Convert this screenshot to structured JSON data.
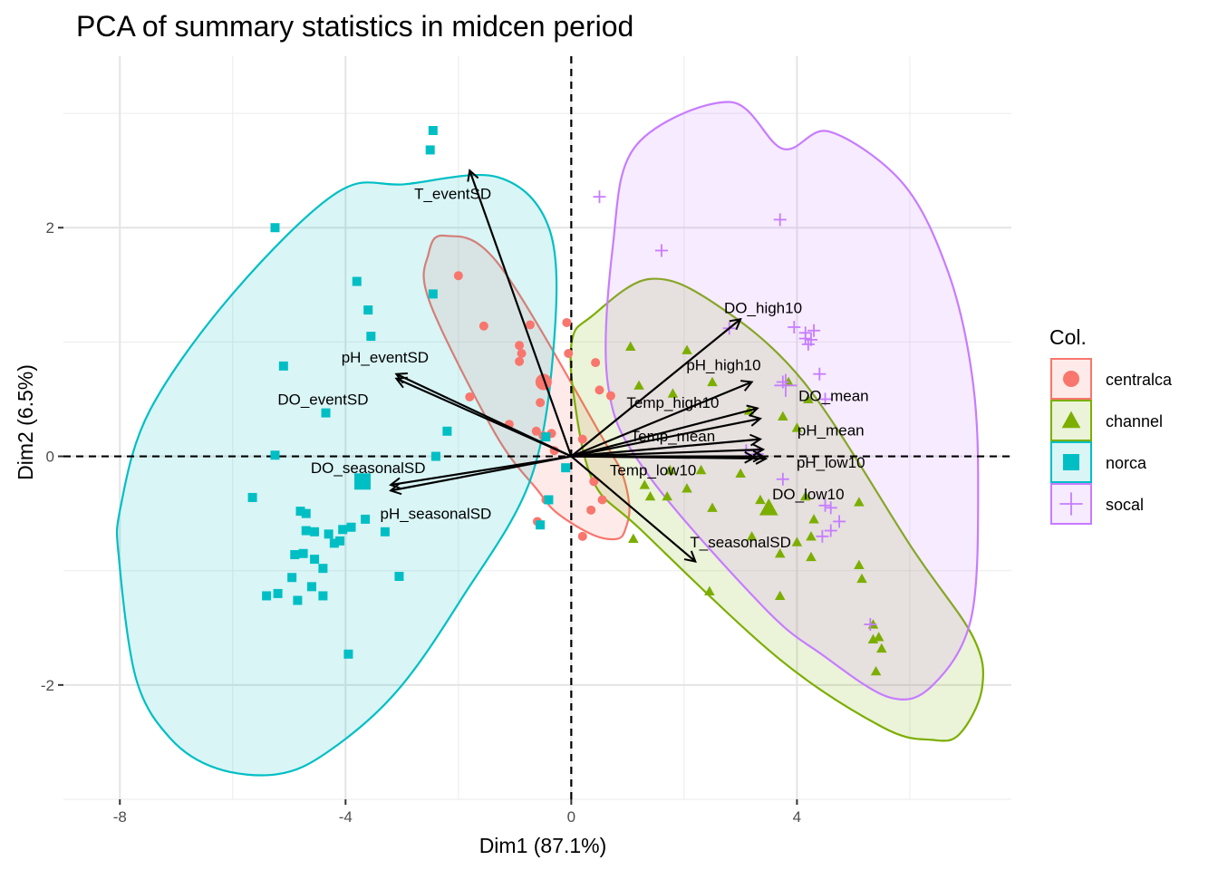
{
  "chart_data": {
    "type": "scatter",
    "title": "PCA of summary statistics in midcen period",
    "xlabel": "Dim1 (87.1%)",
    "ylabel": "Dim2 (6.5%)",
    "xlim": [
      -9.0,
      7.8
    ],
    "ylim": [
      -3.0,
      3.5
    ],
    "x_ticks": [
      -8,
      -4,
      0,
      4
    ],
    "x_tick_labels": [
      "-8",
      "-4",
      "0",
      "4"
    ],
    "y_ticks": [
      -2,
      0,
      2
    ],
    "y_tick_labels": [
      "-2",
      "0",
      "2"
    ],
    "grid": true,
    "legend_title": "Col.",
    "legend_position": "right",
    "groups": [
      {
        "name": "centralca",
        "color": "#F8766D",
        "shape": "circle",
        "ellipse": [
          [
            -2.53,
            1.77
          ],
          [
            -2.24,
            1.93
          ],
          [
            -1.27,
            1.67
          ],
          [
            0.66,
            0.07
          ],
          [
            0.91,
            -0.16
          ],
          [
            1.03,
            -0.44
          ],
          [
            0.97,
            -0.62
          ],
          [
            0.83,
            -0.72
          ],
          [
            0.4,
            -0.69
          ],
          [
            -0.24,
            -0.5
          ],
          [
            -0.59,
            -0.3
          ],
          [
            -1.35,
            0.2
          ],
          [
            -2.51,
            1.35
          ]
        ],
        "centroid": [
          -0.49,
          0.65
        ],
        "points": [
          [
            -2.0,
            1.58
          ],
          [
            -1.55,
            1.14
          ],
          [
            -1.8,
            0.52
          ],
          [
            -0.92,
            0.97
          ],
          [
            -0.88,
            0.9
          ],
          [
            -0.92,
            0.83
          ],
          [
            -0.73,
            1.15
          ],
          [
            -0.55,
            0.47
          ],
          [
            -0.35,
            0.2
          ],
          [
            -1.1,
            0.28
          ],
          [
            -0.62,
            0.22
          ],
          [
            -0.5,
            0.18
          ],
          [
            -0.3,
            0.05
          ],
          [
            -0.08,
            1.17
          ],
          [
            -0.05,
            0.9
          ],
          [
            0.43,
            0.82
          ],
          [
            0.5,
            0.58
          ],
          [
            0.7,
            0.53
          ],
          [
            0.2,
            0.15
          ],
          [
            0.4,
            -0.22
          ],
          [
            0.55,
            -0.38
          ],
          [
            0.35,
            -0.47
          ],
          [
            -0.45,
            -0.38
          ],
          [
            0.2,
            -0.7
          ],
          [
            -0.6,
            -0.57
          ]
        ]
      },
      {
        "name": "channel",
        "color": "#7CAE00",
        "shape": "triangle",
        "ellipse": [
          [
            0.35,
            1.22
          ],
          [
            1.37,
            1.55
          ],
          [
            2.5,
            1.35
          ],
          [
            4.12,
            0.65
          ],
          [
            6.05,
            -0.81
          ],
          [
            7.12,
            -1.58
          ],
          [
            7.28,
            -2.03
          ],
          [
            6.88,
            -2.43
          ],
          [
            6.39,
            -2.48
          ],
          [
            5.52,
            -2.37
          ],
          [
            3.68,
            -1.77
          ],
          [
            1.25,
            -0.65
          ],
          [
            0.39,
            -0.22
          ],
          [
            0.04,
            0.55
          ],
          [
            0.02,
            1.03
          ]
        ],
        "centroid": [
          3.5,
          -0.45
        ],
        "points": [
          [
            1.05,
            0.96
          ],
          [
            1.2,
            0.62
          ],
          [
            1.8,
            0.55
          ],
          [
            2.05,
            0.93
          ],
          [
            2.5,
            0.65
          ],
          [
            3.15,
            0.4
          ],
          [
            3.85,
            0.65
          ],
          [
            4.2,
            0.5
          ],
          [
            3.75,
            0.35
          ],
          [
            4.0,
            0.25
          ],
          [
            1.3,
            -0.25
          ],
          [
            1.75,
            -0.12
          ],
          [
            2.05,
            -0.28
          ],
          [
            2.3,
            -0.12
          ],
          [
            3.0,
            -0.15
          ],
          [
            3.35,
            -0.38
          ],
          [
            4.15,
            -0.35
          ],
          [
            4.3,
            -0.55
          ],
          [
            4.25,
            -0.7
          ],
          [
            5.1,
            -0.4
          ],
          [
            4.0,
            -0.75
          ],
          [
            3.7,
            -0.85
          ],
          [
            4.25,
            -0.88
          ],
          [
            3.2,
            -0.7
          ],
          [
            2.5,
            -0.45
          ],
          [
            1.7,
            -0.35
          ],
          [
            1.1,
            -0.72
          ],
          [
            2.45,
            -1.18
          ],
          [
            3.7,
            -1.22
          ],
          [
            5.1,
            -0.95
          ],
          [
            5.15,
            -1.07
          ],
          [
            5.35,
            -1.47
          ],
          [
            5.35,
            -1.6
          ],
          [
            5.45,
            -1.58
          ],
          [
            5.5,
            -1.68
          ],
          [
            5.4,
            -1.88
          ],
          [
            1.4,
            -0.35
          ]
        ]
      },
      {
        "name": "norca",
        "color": "#00BFC4",
        "shape": "square",
        "ellipse": [
          [
            -8.01,
            -0.92
          ],
          [
            -7.71,
            -1.95
          ],
          [
            -7.1,
            -2.47
          ],
          [
            -6.28,
            -2.73
          ],
          [
            -5.2,
            -2.78
          ],
          [
            -4.3,
            -2.58
          ],
          [
            -3.1,
            -2.06
          ],
          [
            -1.95,
            -1.25
          ],
          [
            -0.72,
            -0.2
          ],
          [
            -0.3,
            1.04
          ],
          [
            -0.39,
            1.99
          ],
          [
            -1.29,
            2.44
          ],
          [
            -2.95,
            2.38
          ],
          [
            -4.14,
            2.31
          ],
          [
            -5.97,
            1.44
          ],
          [
            -7.46,
            0.41
          ],
          [
            -7.99,
            -0.45
          ]
        ],
        "centroid": [
          -3.7,
          -0.22
        ],
        "points": [
          [
            -2.45,
            2.85
          ],
          [
            -2.5,
            2.68
          ],
          [
            -5.25,
            2.0
          ],
          [
            -3.8,
            1.53
          ],
          [
            -2.45,
            1.42
          ],
          [
            -3.6,
            1.28
          ],
          [
            -5.1,
            0.79
          ],
          [
            -3.55,
            1.05
          ],
          [
            -4.35,
            0.38
          ],
          [
            -2.2,
            0.22
          ],
          [
            -5.25,
            0.01
          ],
          [
            -2.4,
            0.0
          ],
          [
            -0.45,
            0.17
          ],
          [
            -3.65,
            -0.55
          ],
          [
            -5.65,
            -0.36
          ],
          [
            -4.8,
            -0.48
          ],
          [
            -4.7,
            -0.5
          ],
          [
            -4.55,
            -0.66
          ],
          [
            -4.7,
            -0.65
          ],
          [
            -4.3,
            -0.68
          ],
          [
            -4.2,
            -0.76
          ],
          [
            -4.1,
            -0.74
          ],
          [
            -4.05,
            -0.64
          ],
          [
            -3.9,
            -0.62
          ],
          [
            -3.3,
            -0.66
          ],
          [
            -4.9,
            -0.86
          ],
          [
            -4.75,
            -0.85
          ],
          [
            -4.55,
            -0.9
          ],
          [
            -4.4,
            -0.98
          ],
          [
            -4.95,
            -1.06
          ],
          [
            -5.4,
            -1.22
          ],
          [
            -5.2,
            -1.2
          ],
          [
            -4.85,
            -1.26
          ],
          [
            -4.6,
            -1.14
          ],
          [
            -4.4,
            -1.22
          ],
          [
            -3.05,
            -1.05
          ],
          [
            -3.95,
            -1.73
          ],
          [
            -0.55,
            -0.6
          ],
          [
            -0.4,
            -0.38
          ],
          [
            -0.1,
            -0.1
          ]
        ]
      },
      {
        "name": "socal",
        "color": "#C77CFF",
        "shape": "plus",
        "ellipse": [
          [
            3.75,
            2.69
          ],
          [
            4.58,
            2.84
          ],
          [
            5.89,
            2.38
          ],
          [
            6.68,
            1.61
          ],
          [
            7.1,
            0.72
          ],
          [
            7.21,
            -0.23
          ],
          [
            7.09,
            -1.41
          ],
          [
            6.41,
            -2.0
          ],
          [
            5.65,
            -2.11
          ],
          [
            4.46,
            -1.74
          ],
          [
            3.41,
            -1.32
          ],
          [
            1.33,
            -0.14
          ],
          [
            0.65,
            0.63
          ],
          [
            0.74,
            1.85
          ],
          [
            1.15,
            2.72
          ],
          [
            2.8,
            3.1
          ]
        ],
        "centroid": [
          3.8,
          0.62
        ],
        "points": [
          [
            0.5,
            2.27
          ],
          [
            3.7,
            2.07
          ],
          [
            1.6,
            1.8
          ],
          [
            2.8,
            1.12
          ],
          [
            3.95,
            1.13
          ],
          [
            4.15,
            1.08
          ],
          [
            4.3,
            1.1
          ],
          [
            4.15,
            1.03
          ],
          [
            4.2,
            0.98
          ],
          [
            4.25,
            1.02
          ],
          [
            4.4,
            0.72
          ],
          [
            4.5,
            0.5
          ],
          [
            3.75,
            0.65
          ],
          [
            3.1,
            0.05
          ],
          [
            3.3,
            0.02
          ],
          [
            3.75,
            -0.2
          ],
          [
            4.5,
            -0.43
          ],
          [
            4.6,
            -0.45
          ],
          [
            4.75,
            -0.57
          ],
          [
            4.6,
            -0.65
          ],
          [
            4.45,
            -0.7
          ],
          [
            5.3,
            -1.47
          ]
        ]
      }
    ],
    "variables": [
      {
        "name": "T_eventSD",
        "end": [
          -1.8,
          2.5
        ],
        "label_pos": [
          -2.1,
          2.3
        ]
      },
      {
        "name": "DO_high10",
        "end": [
          3.0,
          1.2
        ],
        "label_pos": [
          3.4,
          1.3
        ]
      },
      {
        "name": "pH_high10",
        "end": [
          3.2,
          0.65
        ],
        "label_pos": [
          2.7,
          0.8
        ]
      },
      {
        "name": "Temp_high10",
        "end": [
          3.3,
          0.42
        ],
        "label_pos": [
          1.8,
          0.47
        ]
      },
      {
        "name": "DO_mean",
        "end": [
          3.35,
          0.33
        ],
        "label_pos": [
          4.65,
          0.53
        ]
      },
      {
        "name": "Temp_mean",
        "end": [
          3.35,
          0.15
        ],
        "label_pos": [
          1.8,
          0.18
        ]
      },
      {
        "name": "pH_mean",
        "end": [
          3.4,
          0.06
        ],
        "label_pos": [
          4.6,
          0.23
        ]
      },
      {
        "name": "pH_low10",
        "end": [
          3.4,
          0.0
        ],
        "label_pos": [
          4.6,
          -0.05
        ]
      },
      {
        "name": "Temp_low10",
        "end": [
          3.45,
          -0.02
        ],
        "label_pos": [
          1.45,
          -0.12
        ]
      },
      {
        "name": "DO_low10",
        "end": [
          3.25,
          -0.01
        ],
        "label_pos": [
          4.2,
          -0.33
        ]
      },
      {
        "name": "T_seasonalSD",
        "end": [
          2.2,
          -0.92
        ],
        "label_pos": [
          3.0,
          -0.75
        ]
      },
      {
        "name": "pH_eventSD",
        "end": [
          -3.1,
          0.72
        ],
        "label_pos": [
          -3.3,
          0.87
        ]
      },
      {
        "name": "DO_eventSD",
        "end": [
          -3.1,
          0.68
        ],
        "label_pos": [
          -4.4,
          0.5
        ]
      },
      {
        "name": "DO_seasonalSD",
        "end": [
          -3.2,
          -0.25
        ],
        "label_pos": [
          -3.6,
          -0.1
        ]
      },
      {
        "name": "pH_seasonalSD",
        "end": [
          -3.2,
          -0.3
        ],
        "label_pos": [
          -2.4,
          -0.5
        ]
      }
    ]
  }
}
